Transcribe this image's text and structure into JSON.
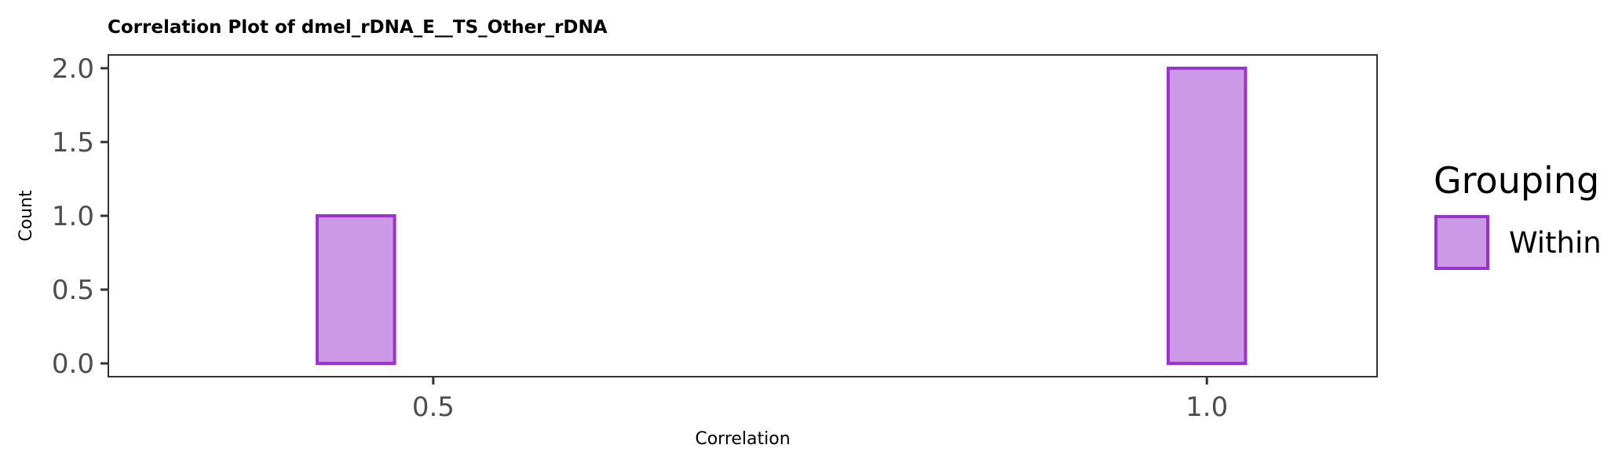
{
  "chart_data": {
    "type": "bar",
    "title": "Correlation Plot of dmel_rDNA_E__TS_Other_rDNA",
    "xlabel": "Correlation",
    "ylabel": "Count",
    "x_ticks": [
      "0.5",
      "1.0"
    ],
    "x_tick_values": [
      0.5,
      1.0
    ],
    "y_ticks": [
      "0.0",
      "0.5",
      "1.0",
      "1.5",
      "2.0"
    ],
    "y_tick_values": [
      0.0,
      0.5,
      1.0,
      1.5,
      2.0
    ],
    "xlim": [
      0.29,
      1.11
    ],
    "ylim": [
      -0.09,
      2.09
    ],
    "bin_width": 0.05,
    "bins": [
      {
        "start": 0.425,
        "end": 0.475,
        "count": 1
      },
      {
        "start": 0.475,
        "end": 0.525,
        "count": 0
      },
      {
        "start": 0.525,
        "end": 0.575,
        "count": 0
      },
      {
        "start": 0.575,
        "end": 0.625,
        "count": 0
      },
      {
        "start": 0.625,
        "end": 0.675,
        "count": 0
      },
      {
        "start": 0.675,
        "end": 0.725,
        "count": 0
      },
      {
        "start": 0.725,
        "end": 0.775,
        "count": 0
      },
      {
        "start": 0.775,
        "end": 0.825,
        "count": 0
      },
      {
        "start": 0.825,
        "end": 0.875,
        "count": 0
      },
      {
        "start": 0.875,
        "end": 0.925,
        "count": 0
      },
      {
        "start": 0.925,
        "end": 0.975,
        "count": 0
      },
      {
        "start": 0.975,
        "end": 1.025,
        "count": 2
      }
    ],
    "legend": {
      "title": "Grouping",
      "items": [
        {
          "label": "Within",
          "fill": "#cc99e6",
          "stroke": "#9933cc"
        }
      ],
      "position": "right"
    },
    "colors": {
      "fill": "#cc99e6",
      "stroke": "#9933cc"
    },
    "grid": false
  }
}
